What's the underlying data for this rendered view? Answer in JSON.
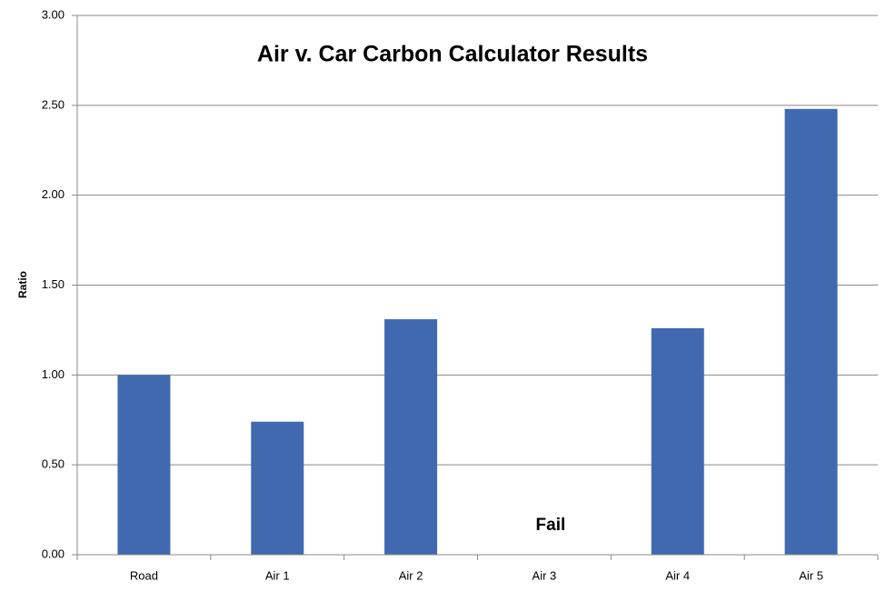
{
  "chart_data": {
    "type": "bar",
    "title": "Air v. Car Carbon Calculator Results",
    "y_label": "Ratio",
    "categories": [
      "Road",
      "Air 1",
      "Air 2",
      "Air 3",
      "Air 4",
      "Air 5"
    ],
    "values": [
      1.0,
      0.74,
      1.31,
      null,
      1.26,
      2.48
    ],
    "color": "#4169b0",
    "ylim": [
      0,
      3
    ],
    "yticks": [
      {
        "value": 0,
        "label": "0.00"
      },
      {
        "value": 0.5,
        "label": "0.50"
      },
      {
        "value": 1,
        "label": "1.00"
      },
      {
        "value": 1.5,
        "label": "1.50"
      },
      {
        "value": 2,
        "label": "2.00"
      },
      {
        "value": 2.5,
        "label": "2.50"
      },
      {
        "value": 3,
        "label": "3.00"
      }
    ],
    "grid": true,
    "annotation": {
      "text": "Fail",
      "category": "Air 3"
    }
  }
}
